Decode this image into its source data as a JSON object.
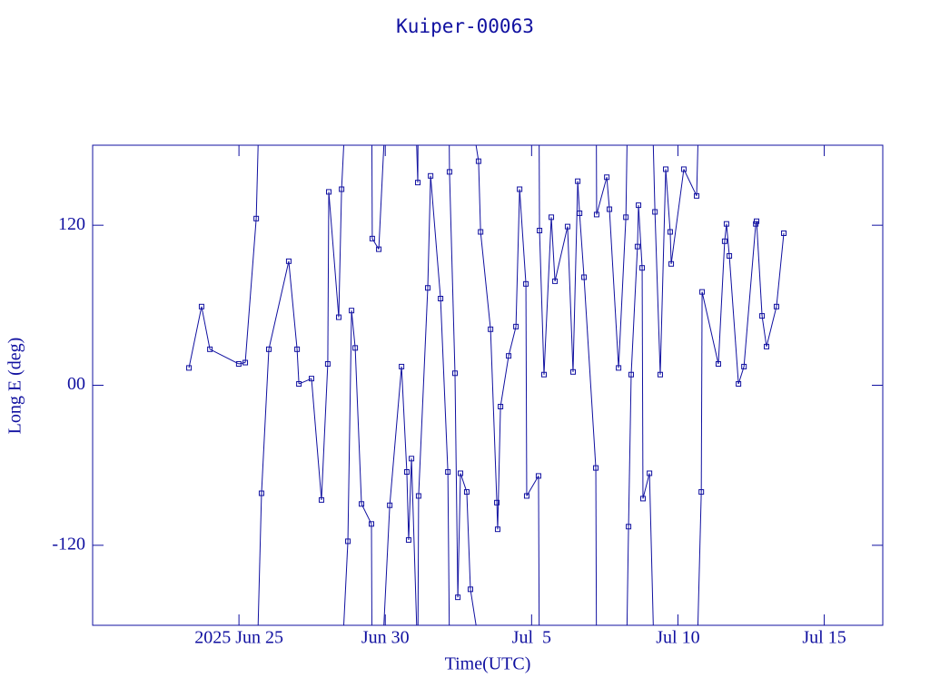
{
  "chart_data": {
    "type": "line",
    "title": "Kuiper-00063",
    "xlabel": "Time(UTC)",
    "ylabel": "Long E (deg)",
    "color": "#1010a0",
    "xlim": [
      "2025-06-20",
      "2025-07-17"
    ],
    "xticks": [
      {
        "value": "2025-06-25",
        "label": "2025 Jun 25"
      },
      {
        "value": "2025-06-30",
        "label": "Jun 30"
      },
      {
        "value": "2025-07-05",
        "label": "Jul  5"
      },
      {
        "value": "2025-07-10",
        "label": "Jul 10"
      },
      {
        "value": "2025-07-15",
        "label": "Jul 15"
      }
    ],
    "ylim": [
      -180,
      180
    ],
    "yticks": [
      -120,
      {
        "value": 0,
        "label": "00"
      },
      120
    ],
    "x": [
      "2025-06-23 07:00",
      "2025-06-23 17:20",
      "2025-06-24 00:10",
      "2025-06-24 23:50",
      "2025-06-25 05:10",
      "2025-06-25 14:10",
      "2025-06-25 18:30",
      "2025-06-26 00:30",
      "2025-06-26 16:50",
      "2025-06-26 23:40",
      "2025-06-27 01:10",
      "2025-06-27 11:30",
      "2025-06-27 19:40",
      "2025-06-28 00:50",
      "2025-06-28 01:40",
      "2025-06-28 09:50",
      "2025-06-28 12:10",
      "2025-06-28 17:20",
      "2025-06-28 20:20",
      "2025-06-28 23:20",
      "2025-06-29 04:30",
      "2025-06-29 12:40",
      "2025-06-29 13:20",
      "2025-06-29 18:40",
      "2025-06-30 03:40",
      "2025-06-30 13:20",
      "2025-06-30 17:40",
      "2025-06-30 19:10",
      "2025-06-30 21:30",
      "2025-07-01 02:40",
      "2025-07-01 03:20",
      "2025-07-01 10:50",
      "2025-07-01 13:10",
      "2025-07-01 21:20",
      "2025-07-02 03:20",
      "2025-07-02 04:40",
      "2025-07-02 09:10",
      "2025-07-02 11:30",
      "2025-07-02 13:40",
      "2025-07-02 18:50",
      "2025-07-02 21:50",
      "2025-07-03 04:30",
      "2025-07-03 06:10",
      "2025-07-03 14:20",
      "2025-07-03 19:30",
      "2025-07-03 20:10",
      "2025-07-03 22:30",
      "2025-07-04 05:10",
      "2025-07-04 11:10",
      "2025-07-04 14:10",
      "2025-07-04 19:20",
      "2025-07-04 20:00",
      "2025-07-05 05:40",
      "2025-07-05 06:30",
      "2025-07-05 10:10",
      "2025-07-05 16:10",
      "2025-07-05 19:10",
      "2025-07-06 05:30",
      "2025-07-06 10:00",
      "2025-07-06 13:50",
      "2025-07-06 15:20",
      "2025-07-06 19:00",
      "2025-07-07 04:40",
      "2025-07-07 05:20",
      "2025-07-07 13:40",
      "2025-07-07 15:50",
      "2025-07-07 23:20",
      "2025-07-08 05:20",
      "2025-07-08 07:30",
      "2025-07-08 09:40",
      "2025-07-08 14:50",
      "2025-07-08 15:40",
      "2025-07-08 18:40",
      "2025-07-08 19:20",
      "2025-07-09 00:40",
      "2025-07-09 05:10",
      "2025-07-09 09:30",
      "2025-07-09 14:00",
      "2025-07-09 17:40",
      "2025-07-09 18:30",
      "2025-07-10 04:50",
      "2025-07-10 15:20",
      "2025-07-10 19:10",
      "2025-07-10 19:50",
      "2025-07-11 09:10",
      "2025-07-11 14:20",
      "2025-07-11 15:50",
      "2025-07-11 18:10",
      "2025-07-12 01:40",
      "2025-07-12 06:10",
      "2025-07-12 15:50",
      "2025-07-12 16:30",
      "2025-07-12 21:00",
      "2025-07-13 00:40",
      "2025-07-13 08:50",
      "2025-07-13 14:50"
    ],
    "values": [
      13,
      59,
      27,
      16,
      17,
      125,
      -81,
      27,
      93,
      27,
      1,
      5,
      -86,
      16,
      145,
      51,
      147,
      -117,
      56,
      28,
      -89,
      -104,
      110,
      102,
      -90,
      14,
      -65,
      -116,
      -55,
      152,
      -83,
      73,
      157,
      65,
      -65,
      160,
      9,
      -159,
      -66,
      -80,
      -153,
      168,
      115,
      42,
      -88,
      -108,
      -16,
      22,
      44,
      147,
      76,
      -83,
      -68,
      116,
      8,
      126,
      78,
      119,
      10,
      153,
      129,
      81,
      -62,
      128,
      156,
      132,
      13,
      126,
      -106,
      8,
      104,
      135,
      88,
      -85,
      -66,
      130,
      8,
      162,
      115,
      91,
      162,
      142,
      -80,
      70,
      16,
      108,
      121,
      97,
      1,
      14,
      121,
      123,
      52,
      29,
      59,
      114
    ]
  }
}
